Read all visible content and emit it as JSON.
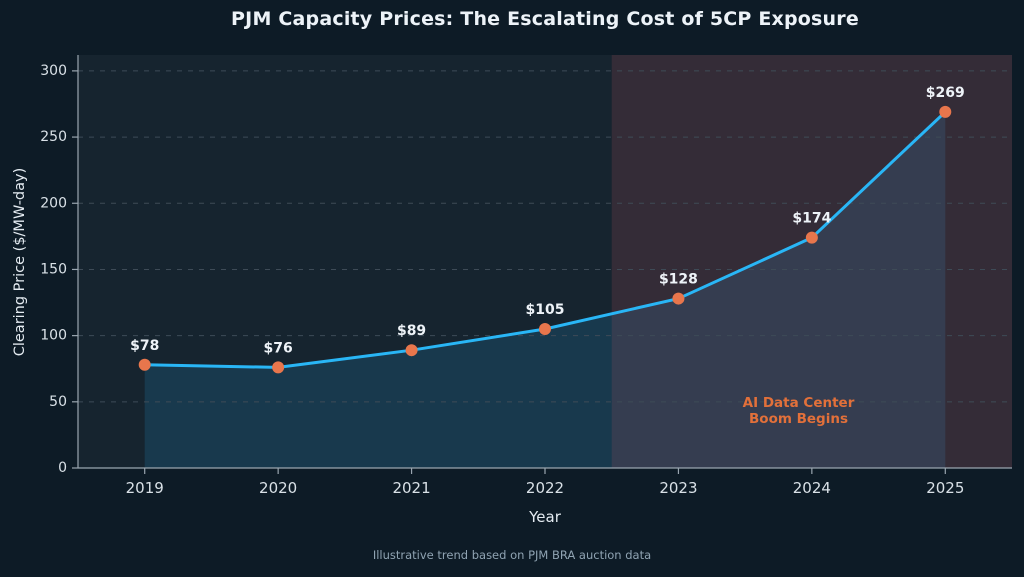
{
  "chart_data": {
    "type": "line",
    "title": "PJM Capacity Prices: The Escalating Cost of 5CP Exposure",
    "xlabel": "Year",
    "ylabel": "Clearing Price ($/MW-day)",
    "caption": "Illustrative trend based on PJM BRA auction data",
    "series": [
      {
        "name": "Clearing Price",
        "x": [
          2019,
          2020,
          2021,
          2022,
          2023,
          2024,
          2025
        ],
        "values": [
          78,
          76,
          89,
          105,
          128,
          174,
          269
        ],
        "point_labels": [
          "$78",
          "$76",
          "$89",
          "$105",
          "$128",
          "$174",
          "$269"
        ]
      }
    ],
    "xticks": [
      2019,
      2020,
      2021,
      2022,
      2023,
      2024,
      2025
    ],
    "yticks": [
      0,
      50,
      100,
      150,
      200,
      250,
      300
    ],
    "xlim": [
      2018.5,
      2025.5
    ],
    "ylim": [
      0,
      312
    ],
    "grid": "horizontal-dashed",
    "legend": "none",
    "area_fill": true,
    "annotation": {
      "lines": [
        "AI Data Center",
        "Boom Begins"
      ],
      "x": 2023.9,
      "y": 46
    },
    "highlight_region": {
      "x_start": 2022.5,
      "x_end": 2025.5,
      "label": "AI Data Center Boom Begins"
    },
    "colors": {
      "background": "#0d1b26",
      "plot_background": "#16242f",
      "line": "#29b6f6",
      "marker": "#e8764c",
      "area_fill": "rgba(41,182,246,0.15)",
      "highlight": "rgba(190,85,95,0.18)",
      "grid": "#3e4b57",
      "spine": "#9aa6b0",
      "tick_text": "#d9e1e7",
      "label_text": "#e4ebf1",
      "title_text": "#edf3f8",
      "point_label_text": "#eef3f8",
      "annotation_text": "#e2703a",
      "caption_text": "#8fa3b2"
    }
  }
}
